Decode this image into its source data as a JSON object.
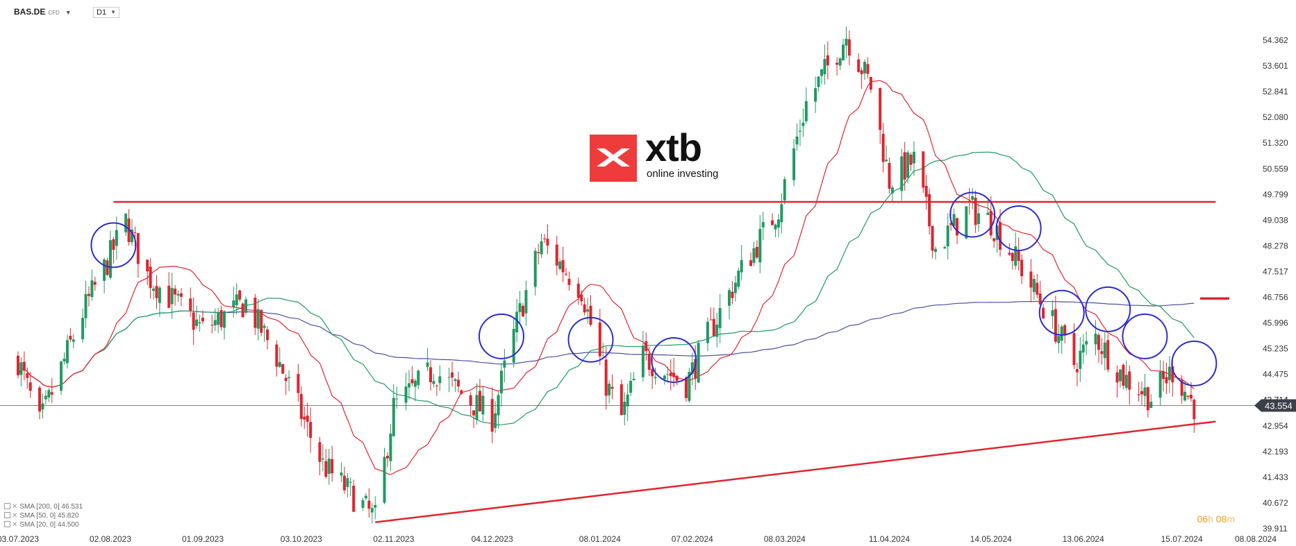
{
  "header": {
    "symbol": "BAS.DE",
    "instrument_type": "CFD",
    "timeframe": "D1"
  },
  "logo": {
    "wordmark": "xtb",
    "tagline": "online investing"
  },
  "legend": [
    {
      "label": "SMA [200, 0] 46.531",
      "color": "#4a4fa3"
    },
    {
      "label": "SMA [50, 0] 45.820",
      "color": "#1f9a63"
    },
    {
      "label": "SMA [20, 0] 44.500",
      "color": "#e0242e"
    }
  ],
  "countdown": {
    "hours": "06",
    "hours_unit": "h",
    "minutes": "08",
    "minutes_unit": "m"
  },
  "chart_data": {
    "type": "candlestick",
    "ylim": [
      39.911,
      55.12
    ],
    "y_ticks": [
      "54.362",
      "53.601",
      "52.841",
      "52.080",
      "51.320",
      "50.559",
      "49.799",
      "49.038",
      "48.278",
      "47.517",
      "46.756",
      "45.996",
      "45.235",
      "44.475",
      "43.714",
      "42.954",
      "42.193",
      "41.433",
      "40.672",
      "39.911"
    ],
    "x_ticks": [
      "03.07.2023",
      "02.08.2023",
      "01.09.2023",
      "03.10.2023",
      "02.11.2023",
      "04.12.2023",
      "08.01.2024",
      "07.02.2024",
      "08.03.2024",
      "11.04.2024",
      "14.05.2024",
      "13.06.2024",
      "15.07.2024",
      "08.08.2024"
    ],
    "last_price": "43.554",
    "last_price_value": 43.554,
    "extra_y_label": "43.714",
    "colors": {
      "up": "#1f9a63",
      "down": "#e0242e",
      "sma200": "#4a4fa3",
      "sma50": "#1f9a63",
      "sma20": "#e0242e",
      "annotations": "#e0242e",
      "circles": "#2b2bd0"
    },
    "ohlc_anchors": [
      {
        "date": "2023-07-03",
        "close": 44.9
      },
      {
        "date": "2023-07-10",
        "close": 43.0
      },
      {
        "date": "2023-07-24",
        "close": 46.3
      },
      {
        "date": "2023-08-01",
        "close": 47.8
      },
      {
        "date": "2023-08-07",
        "close": 49.0
      },
      {
        "date": "2023-08-14",
        "close": 47.4
      },
      {
        "date": "2023-09-01",
        "close": 45.8
      },
      {
        "date": "2023-09-15",
        "close": 46.6
      },
      {
        "date": "2023-09-25",
        "close": 45.0
      },
      {
        "date": "2023-10-10",
        "close": 41.8
      },
      {
        "date": "2023-10-27",
        "close": 40.2
      },
      {
        "date": "2023-11-02",
        "close": 43.5
      },
      {
        "date": "2023-11-15",
        "close": 44.6
      },
      {
        "date": "2023-11-28",
        "close": 43.6
      },
      {
        "date": "2023-12-04",
        "close": 43.2
      },
      {
        "date": "2023-12-12",
        "close": 46.0
      },
      {
        "date": "2023-12-20",
        "close": 48.4
      },
      {
        "date": "2024-01-02",
        "close": 47.0
      },
      {
        "date": "2024-01-10",
        "close": 44.2
      },
      {
        "date": "2024-01-15",
        "close": 43.2
      },
      {
        "date": "2024-01-22",
        "close": 45.0
      },
      {
        "date": "2024-02-05",
        "close": 44.2
      },
      {
        "date": "2024-02-12",
        "close": 45.6
      },
      {
        "date": "2024-02-22",
        "close": 47.4
      },
      {
        "date": "2024-03-06",
        "close": 49.4
      },
      {
        "date": "2024-03-15",
        "close": 52.5
      },
      {
        "date": "2024-03-28",
        "close": 54.5
      },
      {
        "date": "2024-04-05",
        "close": 53.0
      },
      {
        "date": "2024-04-11",
        "close": 50.2
      },
      {
        "date": "2024-04-19",
        "close": 50.8
      },
      {
        "date": "2024-04-26",
        "close": 48.2
      },
      {
        "date": "2024-05-07",
        "close": 49.4
      },
      {
        "date": "2024-05-14",
        "close": 49.0
      },
      {
        "date": "2024-05-24",
        "close": 47.6
      },
      {
        "date": "2024-06-03",
        "close": 46.0
      },
      {
        "date": "2024-06-10",
        "close": 44.8
      },
      {
        "date": "2024-06-17",
        "close": 45.6
      },
      {
        "date": "2024-06-26",
        "close": 44.4
      },
      {
        "date": "2024-07-05",
        "close": 43.8
      },
      {
        "date": "2024-07-12",
        "close": 44.6
      },
      {
        "date": "2024-07-19",
        "close": 43.55
      }
    ],
    "annotations": {
      "resistance": {
        "price": 49.58,
        "from": "2023-08-03",
        "to": "2024-07-26"
      },
      "support": {
        "from": {
          "date": "2023-10-27",
          "price": 40.1
        },
        "to": {
          "date": "2024-07-26",
          "price": 43.08
        }
      },
      "level_marker": {
        "price": 46.72
      },
      "circles": [
        {
          "date": "2023-08-03",
          "price": 48.3
        },
        {
          "date": "2023-12-07",
          "price": 45.6
        },
        {
          "date": "2024-01-05",
          "price": 45.5
        },
        {
          "date": "2024-02-01",
          "price": 44.9
        },
        {
          "date": "2024-05-08",
          "price": 49.2
        },
        {
          "date": "2024-05-23",
          "price": 48.8
        },
        {
          "date": "2024-06-06",
          "price": 46.3
        },
        {
          "date": "2024-06-21",
          "price": 46.4
        },
        {
          "date": "2024-07-03",
          "price": 45.6
        },
        {
          "date": "2024-07-19",
          "price": 44.8
        }
      ]
    }
  }
}
